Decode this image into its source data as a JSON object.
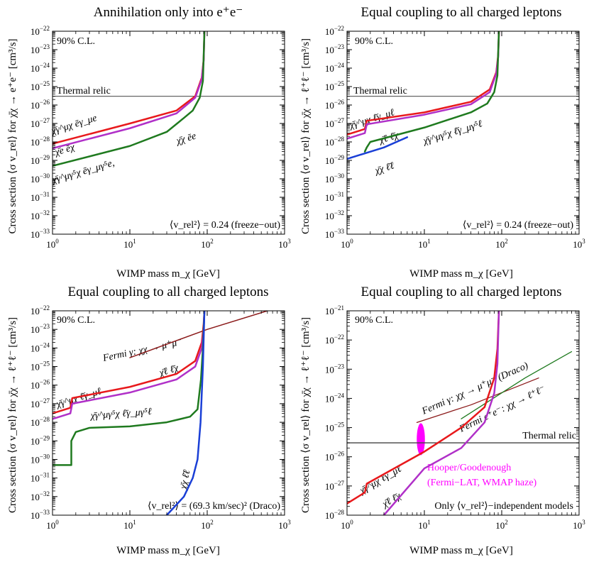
{
  "figure": {
    "ylabel": "Cross section ⟨σ v_rel⟩ for χ̄χ → ℓ⁺ℓ⁻ [cm³/s]"
  },
  "chart_data": [
    {
      "type": "line",
      "title": "Annihilation only into e⁺e⁻",
      "xlabel": "WIMP mass m_χ [GeV]",
      "ylabel": "Cross section ⟨σ v_rel⟩ for χ̄χ → e⁺e⁻ [cm³/s]",
      "xscale": "log",
      "yscale": "log",
      "xlim": [
        1,
        1000
      ],
      "ylim": [
        1e-33,
        1e-22
      ],
      "x_ticks": [
        1,
        10,
        100,
        1000
      ],
      "x_tick_labels": [
        "10^0",
        "10^1",
        "10^2",
        "10^3"
      ],
      "y_ticks": [
        1e-33,
        1e-32,
        1e-31,
        1e-30,
        1e-29,
        1e-28,
        1e-27,
        1e-26,
        1e-25,
        1e-24,
        1e-23,
        1e-22
      ],
      "y_tick_labels": [
        "10^-33",
        "10^-32",
        "10^-31",
        "10^-30",
        "10^-29",
        "10^-28",
        "10^-27",
        "10^-26",
        "10^-25",
        "10^-24",
        "10^-23",
        "10^-22"
      ],
      "texts": [
        "90% C.L.",
        "⟨v_rel²⟩ = 0.24 (freeze−out)"
      ],
      "hlines": [
        {
          "y": 3e-26,
          "label": "Thermal relic",
          "color": "#666666"
        }
      ],
      "series": [
        {
          "name": "χ̄γ^μχ ēγ_μe",
          "color": "#e8191c",
          "width": 2.5,
          "points": [
            [
              1,
              8e-29
            ],
            [
              10,
              1e-27
            ],
            [
              40,
              5e-27
            ],
            [
              70,
              3e-26
            ],
            [
              85,
              3e-25
            ],
            [
              90,
              3e-24
            ],
            [
              92,
              1e-22
            ]
          ]
        },
        {
          "name": "χ̄e ēχ",
          "color": "#b030c8",
          "width": 2.5,
          "points": [
            [
              1,
              4.5e-29
            ],
            [
              10,
              5.5e-28
            ],
            [
              40,
              3.5e-27
            ],
            [
              70,
              2.5e-26
            ],
            [
              85,
              2.5e-25
            ],
            [
              90,
              2.5e-24
            ],
            [
              92,
              1e-22
            ]
          ]
        },
        {
          "name": "χ̄γ^μγ⁵χ ēγ_μγ⁵e, χ̄χ ēe",
          "color": "#1f7a1f",
          "width": 2.5,
          "points": [
            [
              1,
              5e-30
            ],
            [
              10,
              6e-29
            ],
            [
              30,
              3.5e-28
            ],
            [
              50,
              2e-27
            ],
            [
              65,
              5e-27
            ],
            [
              80,
              2.5e-26
            ],
            [
              88,
              2e-25
            ],
            [
              92,
              1e-22
            ]
          ]
        }
      ],
      "series_labels": [
        "χ̄γ^μχ ēγ_μe",
        "χ̄e ēχ",
        "χ̄γ^μγ⁵χ ēγ_μγ⁵e,",
        "χ̄χ ēe"
      ]
    },
    {
      "type": "line",
      "title": "Equal coupling to all charged leptons",
      "xlabel": "WIMP mass m_χ [GeV]",
      "ylabel": "Cross section ⟨σ v_rel⟩ for χ̄χ → ℓ⁺ℓ⁻ [cm³/s]",
      "xscale": "log",
      "yscale": "log",
      "xlim": [
        1,
        1000
      ],
      "ylim": [
        1e-33,
        1e-22
      ],
      "texts": [
        "90% C.L.",
        "⟨v_rel²⟩ = 0.24 (freeze−out)"
      ],
      "hlines": [
        {
          "y": 3e-26,
          "label": "Thermal relic",
          "color": "#666666"
        }
      ],
      "series": [
        {
          "name": "χ̄γ^μχ ℓ̄γ_μℓ",
          "color": "#e8191c",
          "width": 2.5,
          "points": [
            [
              1,
              2.5e-28
            ],
            [
              1.7,
              5e-28
            ],
            [
              1.8,
              1.4e-27
            ],
            [
              10,
              4e-27
            ],
            [
              40,
              1.5e-26
            ],
            [
              70,
              7e-26
            ],
            [
              85,
              6e-25
            ],
            [
              90,
              5e-24
            ],
            [
              92,
              1e-22
            ]
          ]
        },
        {
          "name": "χ̄ℓ ℓ̄χ",
          "color": "#b030c8",
          "width": 2.5,
          "points": [
            [
              1,
              1.5e-28
            ],
            [
              1.7,
              3e-28
            ],
            [
              1.8,
              9e-28
            ],
            [
              10,
              3e-27
            ],
            [
              40,
              1.1e-26
            ],
            [
              70,
              5e-26
            ],
            [
              85,
              5e-25
            ],
            [
              90,
              4e-24
            ],
            [
              92,
              1e-22
            ]
          ]
        },
        {
          "name": "χ̄γ^μγ⁵χ ℓ̄γ_μγ⁵ℓ",
          "color": "#1f7a1f",
          "width": 2.5,
          "points": [
            [
              1.7,
              3e-29
            ],
            [
              1.8,
              5e-29
            ],
            [
              2,
              1e-28
            ],
            [
              10,
              6e-28
            ],
            [
              40,
              4e-27
            ],
            [
              65,
              1.2e-26
            ],
            [
              80,
              5e-26
            ],
            [
              88,
              4e-25
            ],
            [
              92,
              1e-22
            ]
          ]
        },
        {
          "name": "χ̄χ ℓ̄ℓ",
          "color": "#1a3fd6",
          "width": 2.5,
          "points": [
            [
              1,
              1.2e-29
            ],
            [
              3,
              5e-29
            ],
            [
              6,
              1.8e-28
            ]
          ]
        }
      ],
      "series_labels": [
        "χ̄γ^μχ ℓ̄γ_μℓ",
        "χ̄ℓ ℓ̄χ",
        "χ̄γ^μγ⁵χ ℓ̄γ_μγ⁵ℓ",
        "χ̄χ ℓ̄ℓ"
      ]
    },
    {
      "type": "line",
      "title": "Equal coupling to all charged leptons",
      "xlabel": "WIMP mass m_χ [GeV]",
      "ylabel": "Cross section ⟨σ v_rel⟩ for χ̄χ → ℓ⁺ℓ⁻ [cm³/s]",
      "xscale": "log",
      "yscale": "log",
      "xlim": [
        1,
        1000
      ],
      "ylim": [
        1e-33,
        1e-22
      ],
      "texts": [
        "90% C.L.",
        "⟨v_rel²⟩ = (69.3 km/sec)² (Draco)"
      ],
      "series": [
        {
          "name": "Fermi γ: χχ → μ⁺μ⁻",
          "color": "#8b1a1a",
          "width": 1.5,
          "points": [
            [
              10,
              3e-25
            ],
            [
              100,
              1e-23
            ],
            [
              600,
              1e-22
            ]
          ]
        },
        {
          "name": "χ̄γ^μχ ℓ̄γ_μℓ",
          "color": "#e8191c",
          "width": 2.5,
          "points": [
            [
              1,
              3e-28
            ],
            [
              1.7,
              6e-28
            ],
            [
              1.8,
              2e-27
            ],
            [
              10,
              8e-27
            ],
            [
              40,
              4e-26
            ],
            [
              70,
              2e-25
            ],
            [
              85,
              2e-24
            ],
            [
              90,
              2e-23
            ],
            [
              92,
              1e-22
            ]
          ]
        },
        {
          "name": "χ̄ℓ ℓ̄χ",
          "color": "#b030c8",
          "width": 2.5,
          "points": [
            [
              1,
              1.5e-28
            ],
            [
              1.7,
              3e-28
            ],
            [
              1.8,
              1e-27
            ],
            [
              10,
              4e-27
            ],
            [
              40,
              2e-26
            ],
            [
              70,
              1e-25
            ],
            [
              85,
              1e-24
            ],
            [
              90,
              1e-23
            ],
            [
              92,
              1e-22
            ]
          ]
        },
        {
          "name": "χ̄γ^μγ⁵χ ℓ̄γ_μγ⁵ℓ",
          "color": "#1f7a1f",
          "width": 2.5,
          "points": [
            [
              1,
              5e-31
            ],
            [
              1.75,
              5e-31
            ],
            [
              1.75,
              1e-29
            ],
            [
              2,
              3e-29
            ],
            [
              3,
              5e-29
            ],
            [
              10,
              6e-29
            ],
            [
              30,
              1e-28
            ],
            [
              60,
              2e-28
            ],
            [
              75,
              5e-28
            ],
            [
              83,
              2e-26
            ],
            [
              88,
              1e-24
            ],
            [
              92,
              1e-22
            ]
          ]
        },
        {
          "name": "χ̄χ ℓ̄ℓ",
          "color": "#1a3fd6",
          "width": 2.5,
          "points": [
            [
              30,
              1e-33
            ],
            [
              50,
              1e-32
            ],
            [
              65,
              1e-31
            ],
            [
              75,
              1e-30
            ],
            [
              82,
              1e-28
            ],
            [
              88,
              1e-25
            ],
            [
              92,
              1e-22
            ]
          ]
        }
      ],
      "series_labels": [
        "Fermi γ: χχ → μ⁺μ⁻",
        "χ̄γ^μχ ℓ̄γ_μℓ",
        "χ̄ℓ ℓ̄χ",
        "χ̄γ^μγ⁵χ ℓ̄γ_μγ⁵ℓ",
        "χ̄χ ℓ̄ℓ"
      ]
    },
    {
      "type": "line",
      "title": "Equal coupling to all charged leptons",
      "xlabel": "WIMP mass m_χ [GeV]",
      "ylabel": "Cross section ⟨σ v_rel⟩ for χ̄χ → ℓ⁺ℓ⁻ [cm³/s]",
      "xscale": "log",
      "yscale": "log",
      "xlim": [
        1,
        1000
      ],
      "ylim": [
        1e-28,
        1e-21
      ],
      "y_ticks": [
        1e-28,
        1e-27,
        1e-26,
        1e-25,
        1e-24,
        1e-23,
        1e-22
      ],
      "y_tick_labels": [
        "10^-28",
        "10^-27",
        "10^-26",
        "10^-25",
        "10^-24",
        "10^-23",
        "10^-22"
      ],
      "texts": [
        "90% C.L.",
        "Only ⟨v_rel²⟩−independent models"
      ],
      "hlines": [
        {
          "y": 3e-26,
          "label": "Thermal relic",
          "color": "#444444"
        }
      ],
      "series": [
        {
          "name": "Fermi γ: χχ → μ⁺μ⁻ (Draco)",
          "color": "#8b1a1a",
          "width": 1.3,
          "points": [
            [
              8,
              1.5e-25
            ],
            [
              40,
              6e-25
            ],
            [
              300,
              5e-24
            ]
          ]
        },
        {
          "name": "Fermi e⁺e⁻: χχ → ℓ⁺ℓ⁻",
          "color": "#1f7a1f",
          "width": 1.3,
          "points": [
            [
              30,
              2e-25
            ],
            [
              200,
              5e-24
            ],
            [
              800,
              4e-23
            ]
          ]
        },
        {
          "name": "χ̄γ^μχ ℓ̄γ_μℓ",
          "color": "#e8191c",
          "width": 2.5,
          "points": [
            [
              1,
              2.5e-28
            ],
            [
              1.7,
              6e-28
            ],
            [
              1.8,
              1.2e-27
            ],
            [
              10,
              1.5e-26
            ],
            [
              30,
              1e-25
            ],
            [
              60,
              5e-25
            ],
            [
              80,
              5e-24
            ],
            [
              88,
              5e-23
            ],
            [
              92,
              1e-21
            ]
          ]
        },
        {
          "name": "χ̄ℓ ℓ̄χ",
          "color": "#b030c8",
          "width": 2.5,
          "points": [
            [
              3,
              1e-28
            ],
            [
              10,
              4e-27
            ],
            [
              30,
              2e-26
            ],
            [
              60,
              1.5e-25
            ],
            [
              80,
              1.5e-24
            ],
            [
              88,
              1.5e-23
            ],
            [
              92,
              1e-21
            ]
          ]
        }
      ],
      "regions": [
        {
          "name": "Hooper/Goodenough (Fermi−LAT, WMAP haze)",
          "color": "#ff00ff",
          "x_center": 9,
          "y_center": 4e-26,
          "x_range": [
            8,
            10.2
          ],
          "y_range": [
            1.2e-26,
            1.5e-25
          ]
        }
      ],
      "series_labels": [
        "Fermi γ: χχ → μ⁺μ⁻ (Draco)",
        "Fermi e⁺e⁻: χχ → ℓ⁺ℓ⁻",
        "χ̄γ^μχ ℓ̄γ_μℓ",
        "χ̄ℓ ℓ̄χ"
      ],
      "region_labels": [
        "Hooper/Goodenough",
        "(Fermi−LAT, WMAP haze)"
      ]
    }
  ]
}
